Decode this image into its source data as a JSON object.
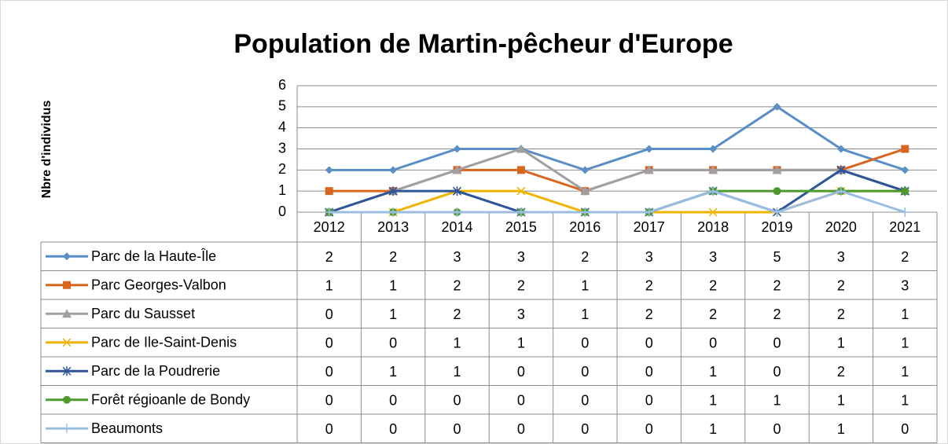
{
  "chart_data": {
    "type": "line",
    "title": "Population de Martin-pêcheur d'Europe",
    "y_label": "Nbre d'individus",
    "categories": [
      "2012",
      "2013",
      "2014",
      "2015",
      "2016",
      "2017",
      "2018",
      "2019",
      "2020",
      "2021"
    ],
    "series": [
      {
        "name": "Parc de la Haute-Île",
        "color": "#5a8ec6",
        "marker": "diamond",
        "values": [
          2,
          2,
          3,
          3,
          2,
          3,
          3,
          5,
          3,
          2
        ]
      },
      {
        "name": "Parc Georges-Valbon",
        "color": "#d9661f",
        "marker": "square",
        "values": [
          1,
          1,
          2,
          2,
          1,
          2,
          2,
          2,
          2,
          3
        ]
      },
      {
        "name": "Parc du Sausset",
        "color": "#a0a0a0",
        "marker": "triangle",
        "values": [
          0,
          1,
          2,
          3,
          1,
          2,
          2,
          2,
          2,
          1
        ]
      },
      {
        "name": "Parc de Ile-Saint-Denis",
        "color": "#f0b400",
        "marker": "x",
        "values": [
          0,
          0,
          1,
          1,
          0,
          0,
          0,
          0,
          1,
          1
        ]
      },
      {
        "name": "Parc de la Poudrerie",
        "color": "#2e5597",
        "marker": "star",
        "values": [
          0,
          1,
          1,
          0,
          0,
          0,
          1,
          0,
          2,
          1
        ]
      },
      {
        "name": "Forêt régioanle de Bondy",
        "color": "#4e9a2e",
        "marker": "circle",
        "values": [
          0,
          0,
          0,
          0,
          0,
          0,
          1,
          1,
          1,
          1
        ]
      },
      {
        "name": "Beaumonts",
        "color": "#9bbde2",
        "marker": "plus",
        "values": [
          0,
          0,
          0,
          0,
          0,
          0,
          1,
          0,
          1,
          0
        ]
      }
    ],
    "ylim": [
      0,
      6
    ],
    "yticks": [
      0,
      1,
      2,
      3,
      4,
      5,
      6
    ],
    "grid": true
  }
}
